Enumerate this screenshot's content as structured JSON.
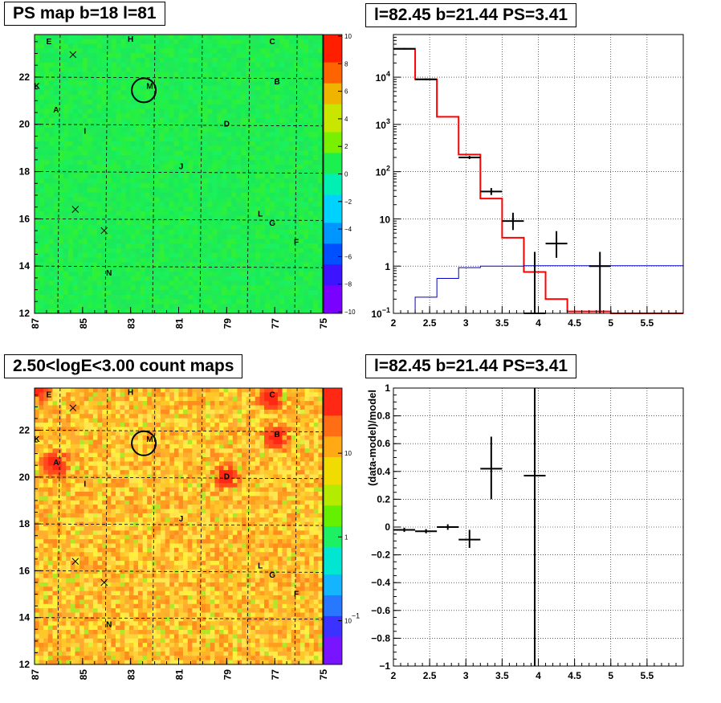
{
  "panels": {
    "ps_map": {
      "title": "PS map b=18 l=81"
    },
    "spectrum": {
      "title": "l=82.45 b=21.44 PS=3.41"
    },
    "count_map": {
      "title": "2.50<logE<3.00 count maps"
    },
    "residual": {
      "title": "l=82.45 b=21.44 PS=3.41"
    }
  },
  "colors": {
    "red": "#ff0000",
    "blue": "#0000cc",
    "black": "#000000",
    "map_green": "#1cf050"
  },
  "chart_data": [
    {
      "type": "heatmap",
      "title": "PS map b=18 l=81",
      "x_ticks": [
        "87",
        "85",
        "83",
        "81",
        "79",
        "77",
        "75"
      ],
      "xlim": [
        87,
        75
      ],
      "y_ticks": [
        "12",
        "14",
        "16",
        "18",
        "20",
        "22"
      ],
      "ylim": [
        12,
        23.8
      ],
      "palette_ticks": [
        "10",
        "8",
        "6",
        "4",
        "2",
        "0",
        "−2",
        "−4",
        "−6",
        "−8",
        "−10"
      ],
      "zlim": [
        -10,
        10
      ],
      "sources": [
        {
          "label": "E",
          "l": 86.4,
          "b": 23.4
        },
        {
          "label": "H",
          "l": 83.0,
          "b": 23.5
        },
        {
          "label": "C",
          "l": 77.1,
          "b": 23.4
        },
        {
          "label": "K",
          "l": 86.9,
          "b": 21.5
        },
        {
          "label": "M",
          "l": 82.2,
          "b": 21.5
        },
        {
          "label": "B",
          "l": 76.9,
          "b": 21.7
        },
        {
          "label": "A",
          "l": 86.1,
          "b": 20.5
        },
        {
          "label": "I",
          "l": 84.9,
          "b": 19.6
        },
        {
          "label": "D",
          "l": 79.0,
          "b": 19.9
        },
        {
          "label": "J",
          "l": 80.9,
          "b": 18.1
        },
        {
          "label": "L",
          "l": 77.6,
          "b": 16.1
        },
        {
          "label": "G",
          "l": 77.1,
          "b": 15.7
        },
        {
          "label": "F",
          "l": 76.1,
          "b": 14.9
        },
        {
          "label": "N",
          "l": 83.9,
          "b": 13.6
        }
      ],
      "crosses": [
        {
          "l": 85.4,
          "b": 22.95
        },
        {
          "l": 85.3,
          "b": 16.4
        },
        {
          "l": 84.1,
          "b": 15.5
        }
      ],
      "circle": {
        "l": 82.45,
        "b": 21.44
      }
    },
    {
      "type": "line",
      "title": "l=82.45 b=21.44 PS=3.41",
      "xlim": [
        2,
        6
      ],
      "x_ticks": [
        "2",
        "2.5",
        "3",
        "3.5",
        "4",
        "4.5",
        "5",
        "5.5"
      ],
      "y_log": true,
      "ylim": [
        0.1,
        80000
      ],
      "y_ticks": [
        {
          "v": 0.1,
          "b": "10",
          "e": "−1"
        },
        {
          "v": 1,
          "b": "1",
          "e": ""
        },
        {
          "v": 10,
          "b": "10",
          "e": ""
        },
        {
          "v": 100,
          "b": "10",
          "e": "2"
        },
        {
          "v": 1000,
          "b": "10",
          "e": "3"
        },
        {
          "v": 10000,
          "b": "10",
          "e": "4"
        }
      ],
      "grid": true,
      "series": [
        {
          "kind": "step",
          "color": "red",
          "edges": [
            2,
            2.3,
            2.6,
            2.9,
            3.2,
            3.5,
            3.8,
            4.1,
            4.4,
            4.7,
            5,
            5.3,
            5.6,
            6
          ],
          "values": [
            40000,
            9000,
            1450,
            230,
            27,
            4,
            0.75,
            0.2,
            0.11,
            0.11,
            0.1,
            0.1,
            0.1
          ]
        },
        {
          "kind": "step",
          "color": "blue",
          "edges": [
            2,
            2.3,
            2.6,
            2.9,
            3.2,
            3.5,
            3.8,
            4.1,
            4.4,
            4.7,
            5,
            5.3,
            5.6,
            6
          ],
          "values": [
            0.1,
            0.22,
            0.55,
            0.93,
            1.0,
            1.0,
            1.02,
            1.02,
            1.02,
            1.02,
            1.02,
            1.02,
            1.02
          ]
        },
        {
          "kind": "errorbar",
          "color": "black",
          "points": [
            {
              "x": 2.15,
              "xl": 2.0,
              "xh": 2.3,
              "y": 40000,
              "yl": 38500,
              "yh": 41500
            },
            {
              "x": 2.45,
              "xl": 2.3,
              "xh": 2.6,
              "y": 9000,
              "yl": 8600,
              "yh": 9400
            },
            {
              "x": 3.05,
              "xl": 2.9,
              "xh": 3.2,
              "y": 200,
              "yl": 185,
              "yh": 215
            },
            {
              "x": 3.35,
              "xl": 3.2,
              "xh": 3.5,
              "y": 38,
              "yl": 32,
              "yh": 45
            },
            {
              "x": 3.65,
              "xl": 3.5,
              "xh": 3.8,
              "y": 9,
              "yl": 5.8,
              "yh": 13.5
            },
            {
              "x": 3.95,
              "xl": 3.8,
              "xh": 4.1,
              "y": 0.1,
              "yl": 0.1,
              "yh": 2.0
            },
            {
              "x": 4.25,
              "xl": 4.1,
              "xh": 4.4,
              "y": 3.0,
              "yl": 1.5,
              "yh": 5.5
            },
            {
              "x": 4.85,
              "xl": 4.7,
              "xh": 5.0,
              "y": 1.0,
              "yl": 0.1,
              "yh": 2.0
            }
          ]
        }
      ]
    },
    {
      "type": "heatmap",
      "title": "2.50<logE<3.00 count maps",
      "x_ticks": [
        "87",
        "85",
        "83",
        "81",
        "79",
        "77",
        "75"
      ],
      "xlim": [
        87,
        75
      ],
      "y_ticks": [
        "12",
        "14",
        "16",
        "18",
        "20",
        "22"
      ],
      "ylim": [
        12,
        23.8
      ],
      "palette_log": true,
      "palette_ticks": [
        {
          "v": 10,
          "b": "10",
          "e": ""
        },
        {
          "v": 1,
          "b": "1",
          "e": ""
        },
        {
          "v": 0.1,
          "b": "10",
          "e": "−1"
        }
      ],
      "zlim": [
        0.03,
        60
      ],
      "hot_spots": [
        {
          "l": 86.1,
          "b": 20.6
        },
        {
          "l": 77.1,
          "b": 23.4
        },
        {
          "l": 76.9,
          "b": 21.7
        },
        {
          "l": 79.0,
          "b": 20.0
        },
        {
          "l": 86.9,
          "b": 23.8
        }
      ],
      "sources_same_as_ps_map": true
    },
    {
      "type": "scatter",
      "title": "l=82.45 b=21.44 PS=3.41",
      "ylabel": "(data-model)/model",
      "xlim": [
        2,
        6
      ],
      "x_ticks": [
        "2",
        "2.5",
        "3",
        "3.5",
        "4",
        "4.5",
        "5",
        "5.5"
      ],
      "ylim": [
        -1,
        1
      ],
      "y_ticks": [
        "1",
        "0.8",
        "0.6",
        "0.4",
        "0.2",
        "0",
        "−0.2",
        "−0.4",
        "−0.6",
        "−0.8",
        "−1"
      ],
      "grid": true,
      "points": [
        {
          "x": 2.15,
          "xl": 2.0,
          "xh": 2.3,
          "y": -0.02,
          "yl": -0.035,
          "yh": -0.005
        },
        {
          "x": 2.45,
          "xl": 2.3,
          "xh": 2.6,
          "y": -0.03,
          "yl": -0.045,
          "yh": -0.015
        },
        {
          "x": 2.75,
          "xl": 2.6,
          "xh": 2.9,
          "y": 0.0,
          "yl": -0.02,
          "yh": 0.02
        },
        {
          "x": 3.05,
          "xl": 2.9,
          "xh": 3.2,
          "y": -0.09,
          "yl": -0.15,
          "yh": -0.02
        },
        {
          "x": 3.35,
          "xl": 3.2,
          "xh": 3.5,
          "y": 0.42,
          "yl": 0.2,
          "yh": 0.65
        },
        {
          "x": 3.95,
          "xl": 3.8,
          "xh": 4.1,
          "y": 0.37,
          "yl": -1.0,
          "yh": 1.0
        }
      ]
    }
  ]
}
